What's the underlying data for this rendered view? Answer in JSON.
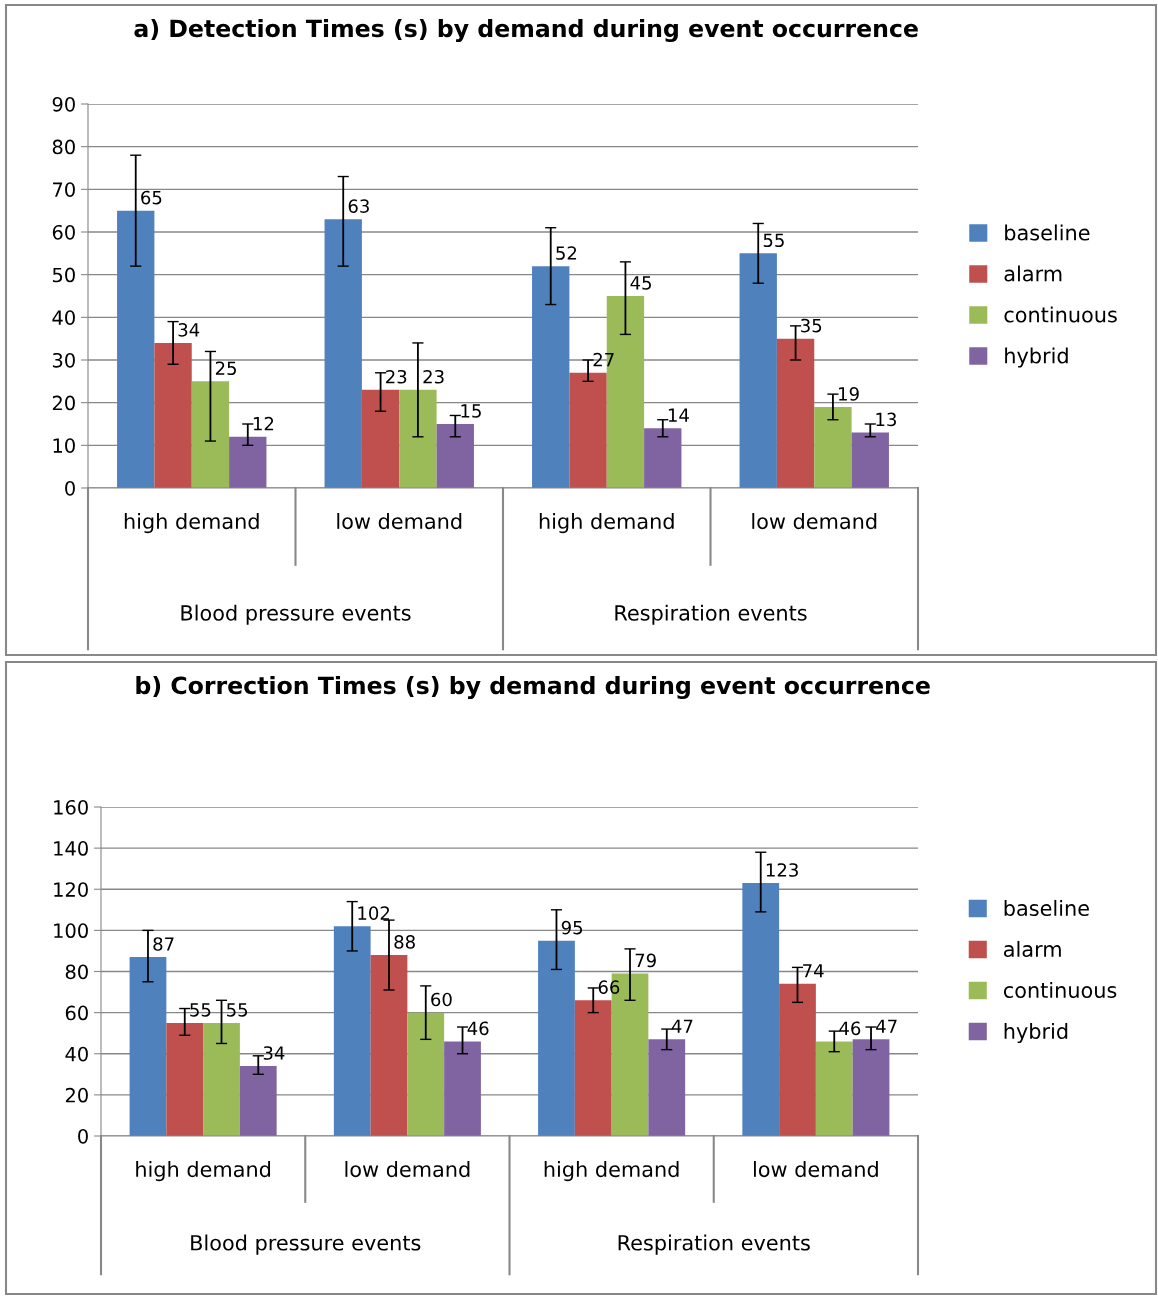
{
  "chart_data": [
    {
      "type": "bar",
      "title": "a) Detection Times (s) by demand during event occurrence",
      "categories": [
        "high demand",
        "low demand",
        "high demand",
        "low demand"
      ],
      "annotations": [
        "Blood pressure events",
        "Respiration events"
      ],
      "ylim": [
        0,
        90
      ],
      "yticks": [
        0,
        10,
        20,
        30,
        40,
        50,
        60,
        70,
        80,
        90
      ],
      "grid": "y",
      "legend": "right",
      "data_labels": true,
      "series": [
        {
          "name": "baseline",
          "color": "#4f81bd",
          "values": [
            65,
            63,
            52,
            55
          ],
          "errors": [
            [
              52,
              78
            ],
            [
              52,
              73
            ],
            [
              43,
              61
            ],
            [
              48,
              62
            ]
          ]
        },
        {
          "name": "alarm",
          "color": "#c0504d",
          "values": [
            34,
            23,
            27,
            35
          ],
          "errors": [
            [
              29,
              39
            ],
            [
              18,
              27
            ],
            [
              25,
              30
            ],
            [
              30,
              38
            ]
          ]
        },
        {
          "name": "continuous",
          "color": "#9bbb59",
          "values": [
            25,
            23,
            45,
            19
          ],
          "errors": [
            [
              11,
              32
            ],
            [
              12,
              34
            ],
            [
              36,
              53
            ],
            [
              16,
              22
            ]
          ]
        },
        {
          "name": "hybrid",
          "color": "#8064a2",
          "values": [
            12,
            15,
            14,
            13
          ],
          "errors": [
            [
              10,
              15
            ],
            [
              12,
              17
            ],
            [
              12,
              16
            ],
            [
              12,
              15
            ]
          ]
        }
      ]
    },
    {
      "type": "bar",
      "title": "b) Correction Times (s) by demand during event occurrence",
      "categories": [
        "high demand",
        "low demand",
        "high demand",
        "low demand"
      ],
      "annotations": [
        "Blood pressure events",
        "Respiration events"
      ],
      "ylim": [
        0,
        160
      ],
      "yticks": [
        0,
        20,
        40,
        60,
        80,
        100,
        120,
        140,
        160
      ],
      "grid": "y",
      "legend": "right",
      "data_labels": true,
      "series": [
        {
          "name": "baseline",
          "color": "#4f81bd",
          "values": [
            87,
            102,
            95,
            123
          ],
          "errors": [
            [
              75,
              100
            ],
            [
              90,
              114
            ],
            [
              81,
              110
            ],
            [
              109,
              138
            ]
          ]
        },
        {
          "name": "alarm",
          "color": "#c0504d",
          "values": [
            55,
            88,
            66,
            74
          ],
          "errors": [
            [
              49,
              62
            ],
            [
              71,
              105
            ],
            [
              60,
              72
            ],
            [
              65,
              82
            ]
          ]
        },
        {
          "name": "continuous",
          "color": "#9bbb59",
          "values": [
            55,
            60,
            79,
            46
          ],
          "errors": [
            [
              45,
              66
            ],
            [
              47,
              73
            ],
            [
              66,
              91
            ],
            [
              41,
              51
            ]
          ]
        },
        {
          "name": "hybrid",
          "color": "#8064a2",
          "values": [
            34,
            46,
            47,
            47
          ],
          "errors": [
            [
              30,
              39
            ],
            [
              40,
              53
            ],
            [
              42,
              52
            ],
            [
              42,
              53
            ]
          ]
        }
      ]
    }
  ]
}
